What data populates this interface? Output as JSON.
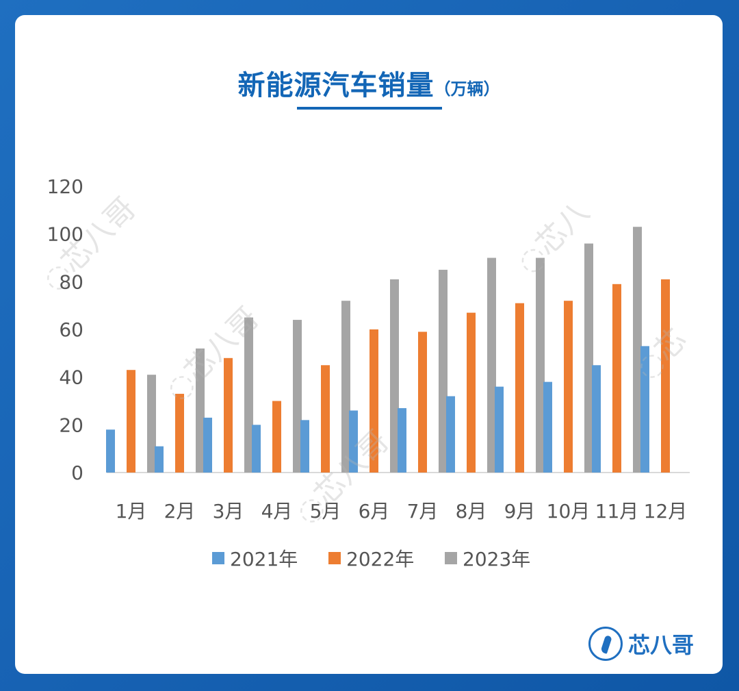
{
  "title": {
    "main": "新能源汽车销量",
    "unit": "（万辆）"
  },
  "colors": {
    "s2021": "#5b9bd5",
    "s2022": "#ed7d31",
    "s2023": "#a5a5a5",
    "accent": "#1366b6"
  },
  "brand": {
    "name": "芯八哥",
    "icon": "bird-logo-icon"
  },
  "chart_data": {
    "type": "bar",
    "title": "新能源汽车销量（万辆）",
    "xlabel": "",
    "ylabel": "",
    "ylim": [
      0,
      120
    ],
    "yticks": [
      "0",
      "20",
      "40",
      "60",
      "80",
      "100",
      "120"
    ],
    "categories": [
      "1月",
      "2月",
      "3月",
      "4月",
      "5月",
      "6月",
      "7月",
      "8月",
      "9月",
      "10月",
      "11月",
      "12月"
    ],
    "series": [
      {
        "name": "2021年",
        "color": "#5b9bd5",
        "values": [
          18,
          11,
          23,
          20,
          22,
          26,
          27,
          32,
          36,
          38,
          45,
          53
        ]
      },
      {
        "name": "2022年",
        "color": "#ed7d31",
        "values": [
          43,
          33,
          48,
          30,
          45,
          60,
          59,
          67,
          71,
          72,
          79,
          81
        ]
      },
      {
        "name": "2023年",
        "color": "#a5a5a5",
        "values": [
          41,
          52,
          65,
          64,
          72,
          81,
          85,
          90,
          90,
          96,
          103,
          null
        ]
      }
    ],
    "legend_position": "bottom",
    "grid": false
  }
}
